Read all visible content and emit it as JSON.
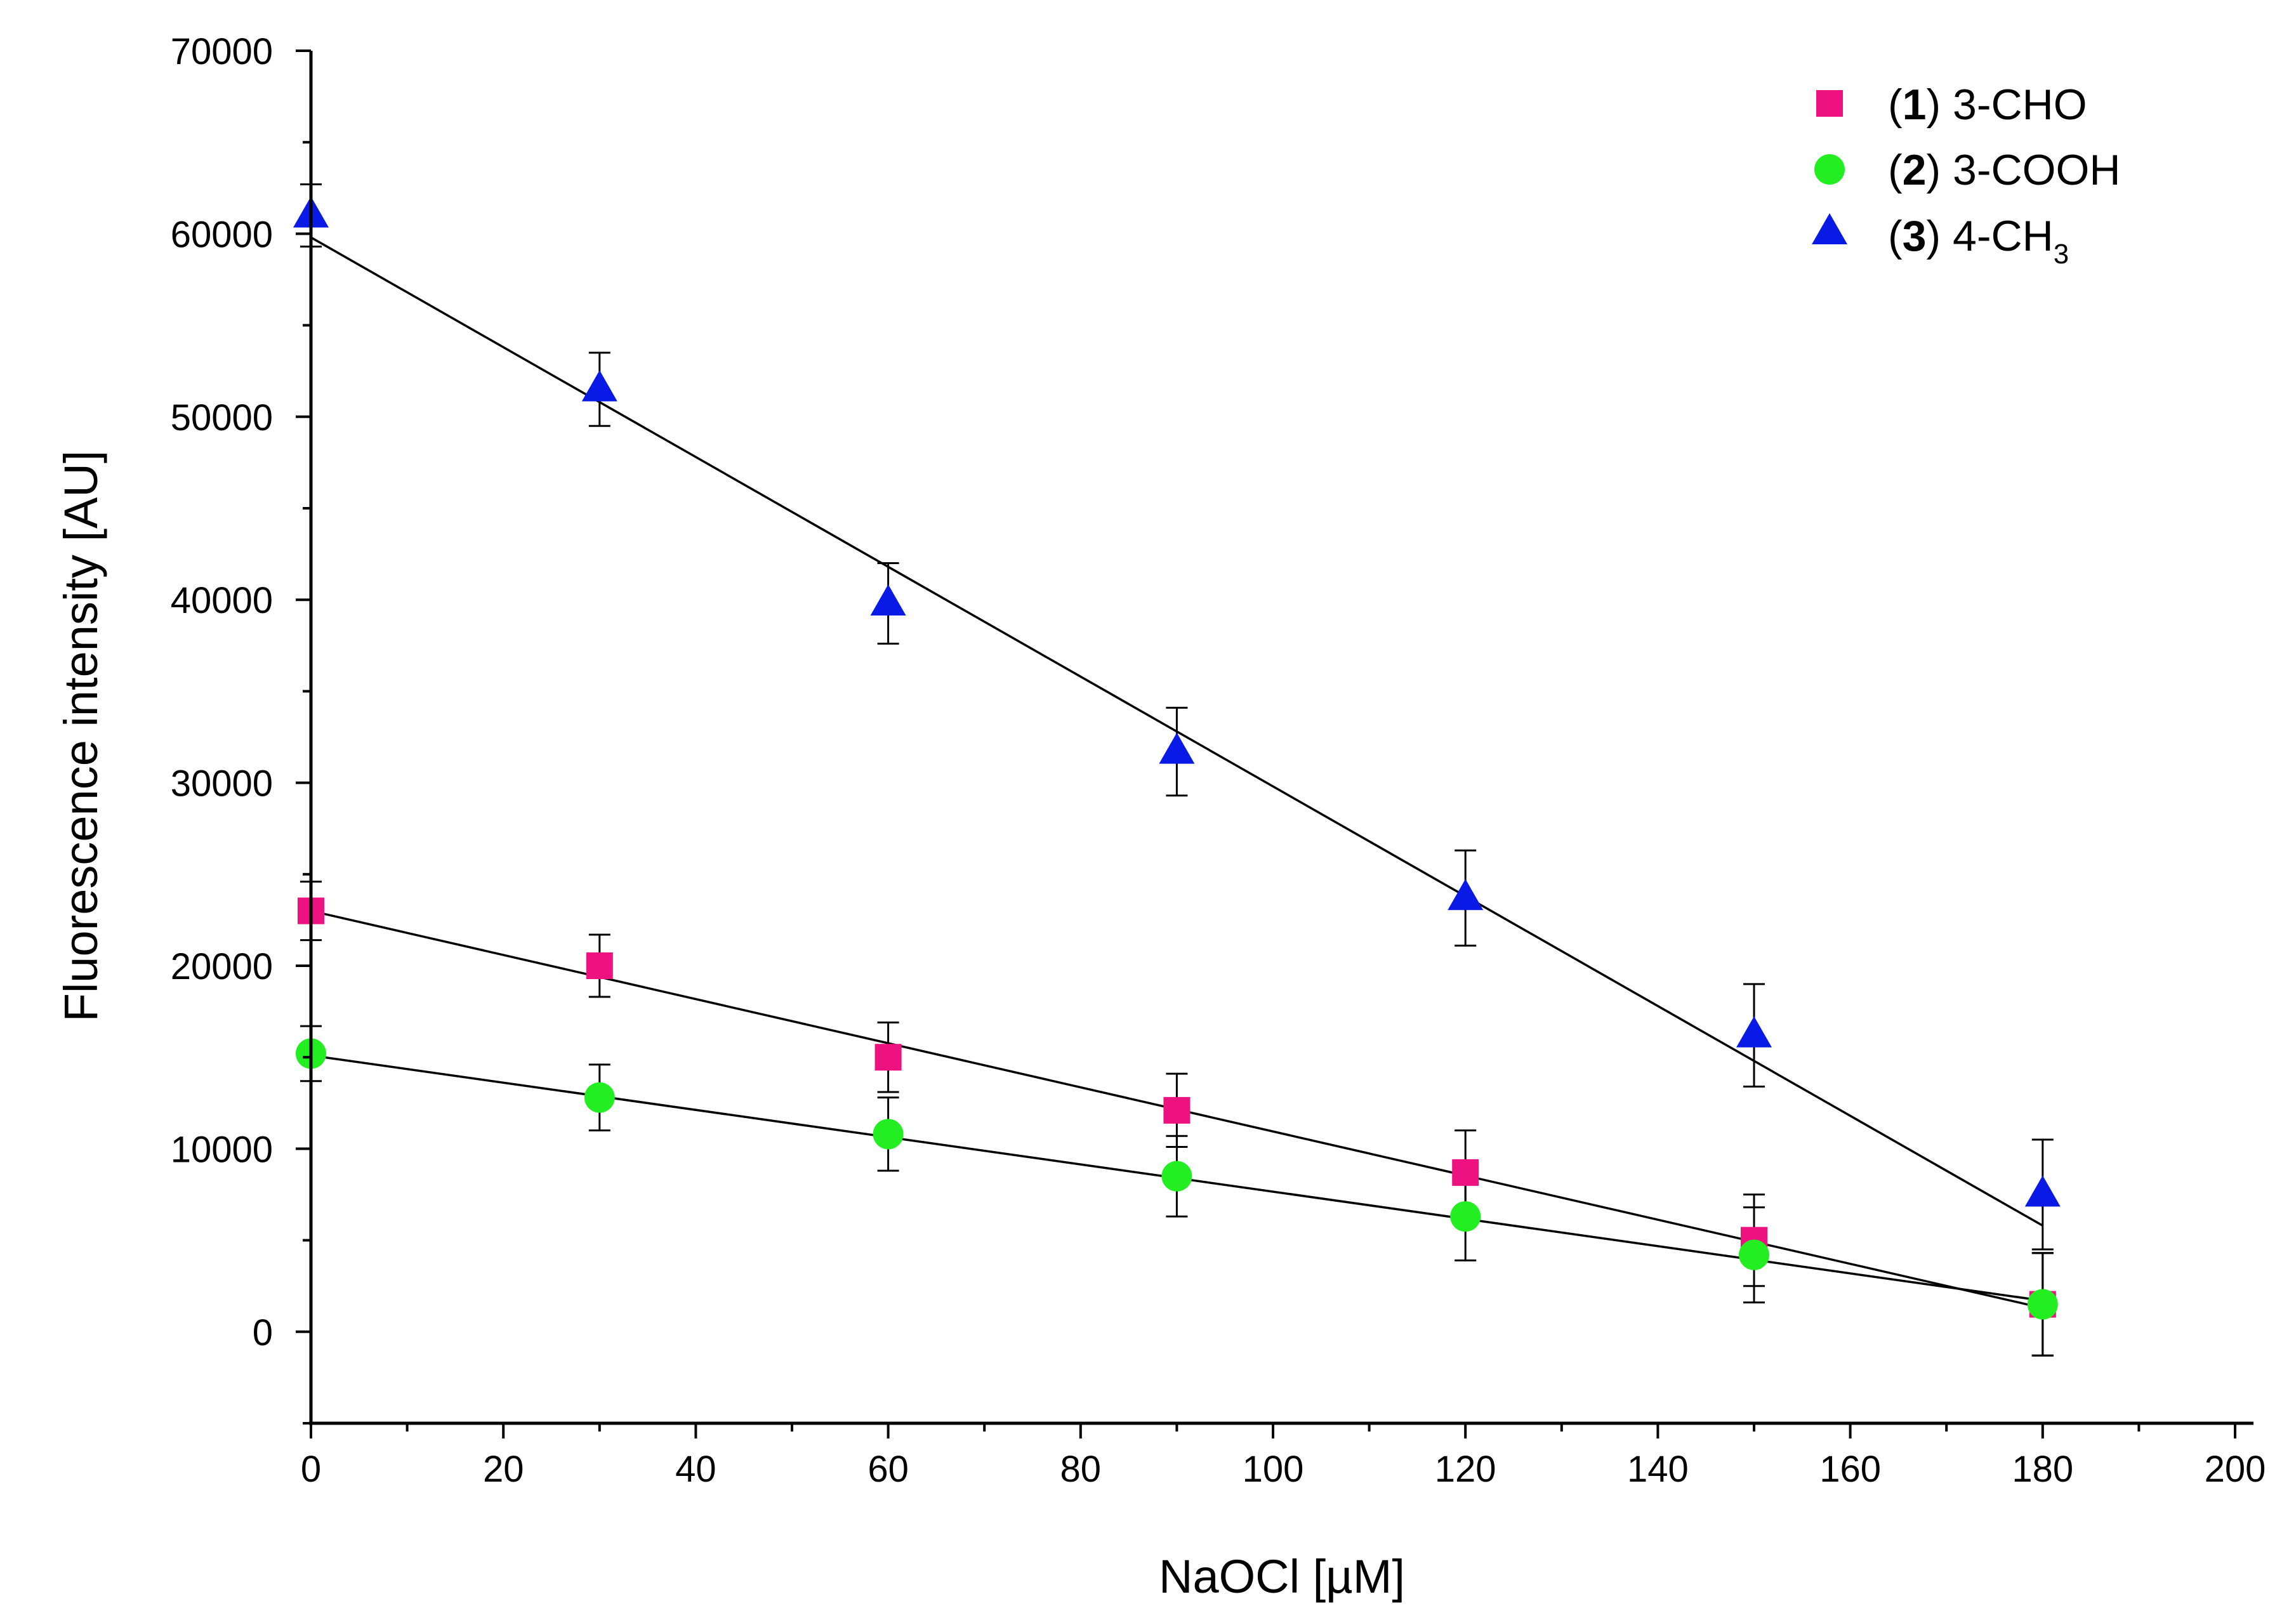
{
  "chart_data": {
    "type": "scatter",
    "title": "",
    "xlabel": "NaOCl [µM]",
    "ylabel": "Fluorescence intensity [AU]",
    "xlim": [
      0,
      200
    ],
    "ylim": [
      -5000,
      70000
    ],
    "x_major_ticks": [
      0,
      20,
      40,
      60,
      80,
      100,
      120,
      140,
      160,
      180,
      200
    ],
    "y_major_ticks": [
      0,
      10000,
      20000,
      30000,
      40000,
      50000,
      60000,
      70000
    ],
    "x_tick_labels": [
      "0",
      "20",
      "40",
      "60",
      "80",
      "100",
      "120",
      "140",
      "160",
      "180",
      "200"
    ],
    "y_tick_labels": [
      "0",
      "10000",
      "20000",
      "30000",
      "40000",
      "50000",
      "60000",
      "70000"
    ],
    "grid": false,
    "legend_position": "top-right",
    "x": [
      0,
      30,
      60,
      90,
      120,
      150,
      180
    ],
    "series": [
      {
        "name": "(1) 3-CHO",
        "legend_paren_open": "(",
        "legend_number": "1",
        "legend_rest": ") 3-CHO",
        "legend_sub": "",
        "marker": "square",
        "color": "#ee1280",
        "values": [
          23000,
          20000,
          15000,
          12100,
          8700,
          5000,
          1500
        ],
        "errors": [
          1600,
          1700,
          1900,
          2000,
          2300,
          2500,
          2800
        ],
        "fit": [
          23000,
          1300
        ]
      },
      {
        "name": "(2) 3-COOH",
        "legend_paren_open": "(",
        "legend_number": "2",
        "legend_rest": ") 3-COOH",
        "legend_sub": "",
        "marker": "circle",
        "color": "#22ee22",
        "values": [
          15200,
          12800,
          10800,
          8500,
          6300,
          4200,
          1500
        ],
        "errors": [
          1500,
          1800,
          2000,
          2200,
          2400,
          2600,
          2800
        ],
        "fit": [
          15100,
          1700
        ]
      },
      {
        "name": "(3) 4-CH3",
        "legend_paren_open": "(",
        "legend_number": "3",
        "legend_rest": ") 4-CH",
        "legend_sub": "3",
        "marker": "triangle",
        "color": "#0a1ae6",
        "values": [
          61000,
          51500,
          39800,
          31700,
          23700,
          16200,
          7500
        ],
        "errors": [
          1700,
          2000,
          2200,
          2400,
          2600,
          2800,
          3000
        ],
        "fit": [
          59800,
          5800
        ]
      }
    ],
    "fit_line_color": "#000000"
  }
}
